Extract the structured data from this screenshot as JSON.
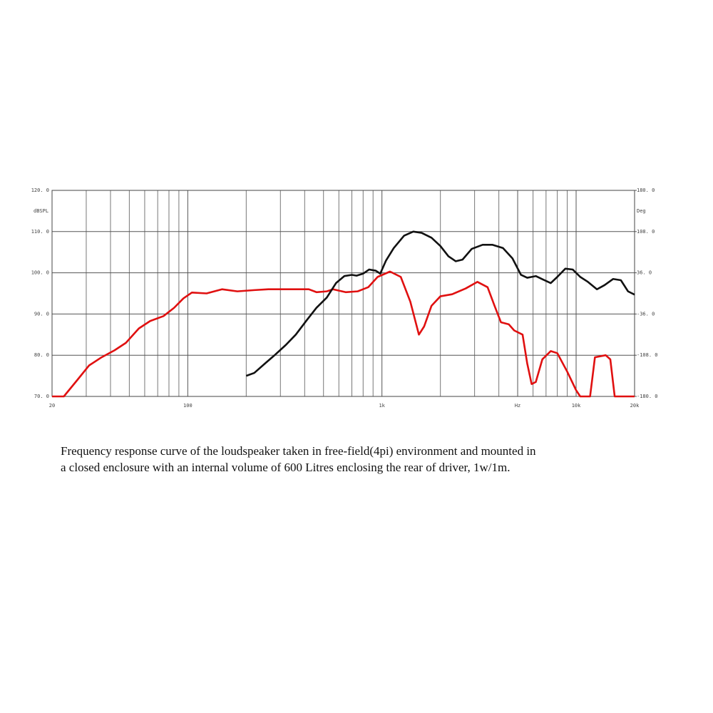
{
  "chart_data": {
    "type": "line",
    "y_label": "dBSPL",
    "y2_label": "Deg",
    "xscale": "log",
    "xlim": [
      20,
      20000
    ],
    "xticks": [
      20,
      100,
      {
        "value": 1000,
        "label": "1k"
      },
      {
        "value": 5000,
        "label": "Hz"
      },
      {
        "value": 10000,
        "label": "10k"
      },
      {
        "value": 20000,
        "label": "20k"
      }
    ],
    "xminor": [
      30,
      40,
      50,
      60,
      70,
      80,
      90,
      200,
      300,
      400,
      500,
      600,
      700,
      800,
      900,
      2000,
      3000,
      4000,
      6000,
      7000,
      8000,
      9000
    ],
    "ylim": [
      70,
      120
    ],
    "yticks": [
      {
        "value": 70,
        "label": "70. 0"
      },
      {
        "value": 80,
        "label": "80. 0"
      },
      {
        "value": 90,
        "label": "90. 0"
      },
      {
        "value": 100,
        "label": "100. 0"
      },
      {
        "value": 110,
        "label": "110. 0"
      },
      {
        "value": 120,
        "label": "120. 0"
      }
    ],
    "y2lim": [
      -180,
      180
    ],
    "y2ticks": [
      {
        "value": -180,
        "label": "-180. 0"
      },
      {
        "value": -108,
        "label": "-108. 0"
      },
      {
        "value": -36,
        "label": "-36. 0"
      },
      {
        "value": 36,
        "label": "36. 0"
      },
      {
        "value": 108,
        "label": "108. 0"
      },
      {
        "value": 180,
        "label": "180. 0"
      }
    ],
    "grid": true,
    "series": [
      {
        "color": "#e01010",
        "x": [
          20,
          23,
          27,
          31,
          36,
          42,
          48,
          56,
          64,
          75,
          85,
          95,
          105,
          125,
          150,
          180,
          220,
          260,
          320,
          420,
          460,
          520,
          560,
          650,
          750,
          850,
          950,
          1100,
          1250,
          1400,
          1550,
          1650,
          1800,
          2000,
          2300,
          2700,
          3100,
          3500,
          3800,
          4100,
          4500,
          4800,
          5300,
          5600,
          5900,
          6200,
          6700,
          7400,
          8000,
          9000,
          10000,
          10500,
          11800,
          12500,
          14200,
          15000,
          15800,
          20000
        ],
        "values": [
          70,
          70,
          74,
          77.5,
          79.5,
          81.2,
          83,
          86.5,
          88.3,
          89.5,
          91.5,
          93.8,
          95.2,
          95,
          96,
          95.5,
          95.8,
          96,
          96,
          96,
          95.3,
          95.5,
          96,
          95.3,
          95.5,
          96.5,
          99,
          100.3,
          99,
          93,
          85,
          87,
          92,
          94.3,
          94.8,
          96.2,
          97.8,
          96.5,
          92,
          88,
          87.5,
          86,
          85,
          78,
          73,
          73.5,
          79,
          81,
          80.5,
          76,
          71.5,
          70,
          70,
          79.5,
          80,
          79,
          70,
          70
        ]
      },
      {
        "color": "#111111",
        "x": [
          200,
          220,
          250,
          280,
          320,
          360,
          410,
          460,
          520,
          580,
          640,
          700,
          740,
          800,
          860,
          930,
          980,
          1050,
          1150,
          1300,
          1450,
          1600,
          1800,
          2000,
          2200,
          2400,
          2600,
          2900,
          3300,
          3700,
          4200,
          4700,
          5200,
          5600,
          6200,
          6800,
          7400,
          8000,
          8800,
          9600,
          10500,
          11500,
          12800,
          14000,
          15500,
          17000,
          18500,
          20000
        ],
        "values": [
          75,
          75.7,
          78,
          80,
          82.5,
          85,
          88.5,
          91.5,
          94,
          97.5,
          99.2,
          99.5,
          99.3,
          99.8,
          100.8,
          100.5,
          99.8,
          103,
          106,
          109,
          110,
          109.7,
          108.5,
          106.5,
          104,
          102.8,
          103.2,
          105.8,
          106.8,
          106.8,
          106,
          103.5,
          99.5,
          98.8,
          99.2,
          98.3,
          97.5,
          99,
          101,
          100.8,
          99,
          97.8,
          96,
          97,
          98.5,
          98.2,
          95.5,
          94.7
        ]
      }
    ]
  },
  "caption": [
    "Frequency response curve of the loudspeaker taken in free-field(4pi) environment and mounted in",
    "a closed enclosure  with an internal volume of 600 Litres enclosing the rear of driver, 1w/1m."
  ]
}
